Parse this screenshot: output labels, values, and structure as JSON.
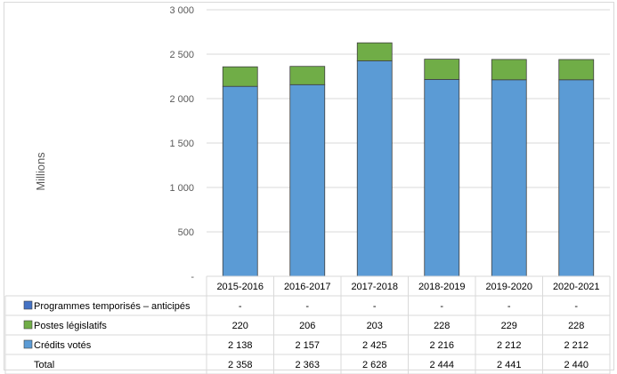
{
  "chart_data": {
    "type": "bar",
    "stacked": true,
    "categories": [
      "2015-2016",
      "2016-2017",
      "2017-2018",
      "2018-2019",
      "2019-2020",
      "2020-2021"
    ],
    "ylabel": "Millions",
    "ylim": [
      0,
      3000
    ],
    "yticks": [
      "-",
      "500",
      "1 000",
      "1 500",
      "2 000",
      "2 500",
      "3 000"
    ],
    "ytick_values": [
      0,
      500,
      1000,
      1500,
      2000,
      2500,
      3000
    ],
    "grid": true,
    "series": [
      {
        "name": "Programmes temporisés – anticipés",
        "color": "#4472c4",
        "values": [
          0,
          0,
          0,
          0,
          0,
          0
        ],
        "labels": [
          "-",
          "-",
          "-",
          "-",
          "-",
          "-"
        ]
      },
      {
        "name": "Postes législatifs",
        "color": "#70ad47",
        "values": [
          220,
          206,
          203,
          228,
          229,
          228
        ],
        "labels": [
          "220",
          "206",
          "203",
          "228",
          "229",
          "228"
        ]
      },
      {
        "name": "Crédits votés",
        "color": "#5b9bd5",
        "values": [
          2138,
          2157,
          2425,
          2216,
          2212,
          2212
        ],
        "labels": [
          "2 138",
          "2 157",
          "2 425",
          "2 216",
          "2 212",
          "2 212"
        ]
      }
    ],
    "total": {
      "name": "Total",
      "labels": [
        "2 358",
        "2 363",
        "2 628",
        "2 444",
        "2 441",
        "2 440"
      ]
    }
  }
}
